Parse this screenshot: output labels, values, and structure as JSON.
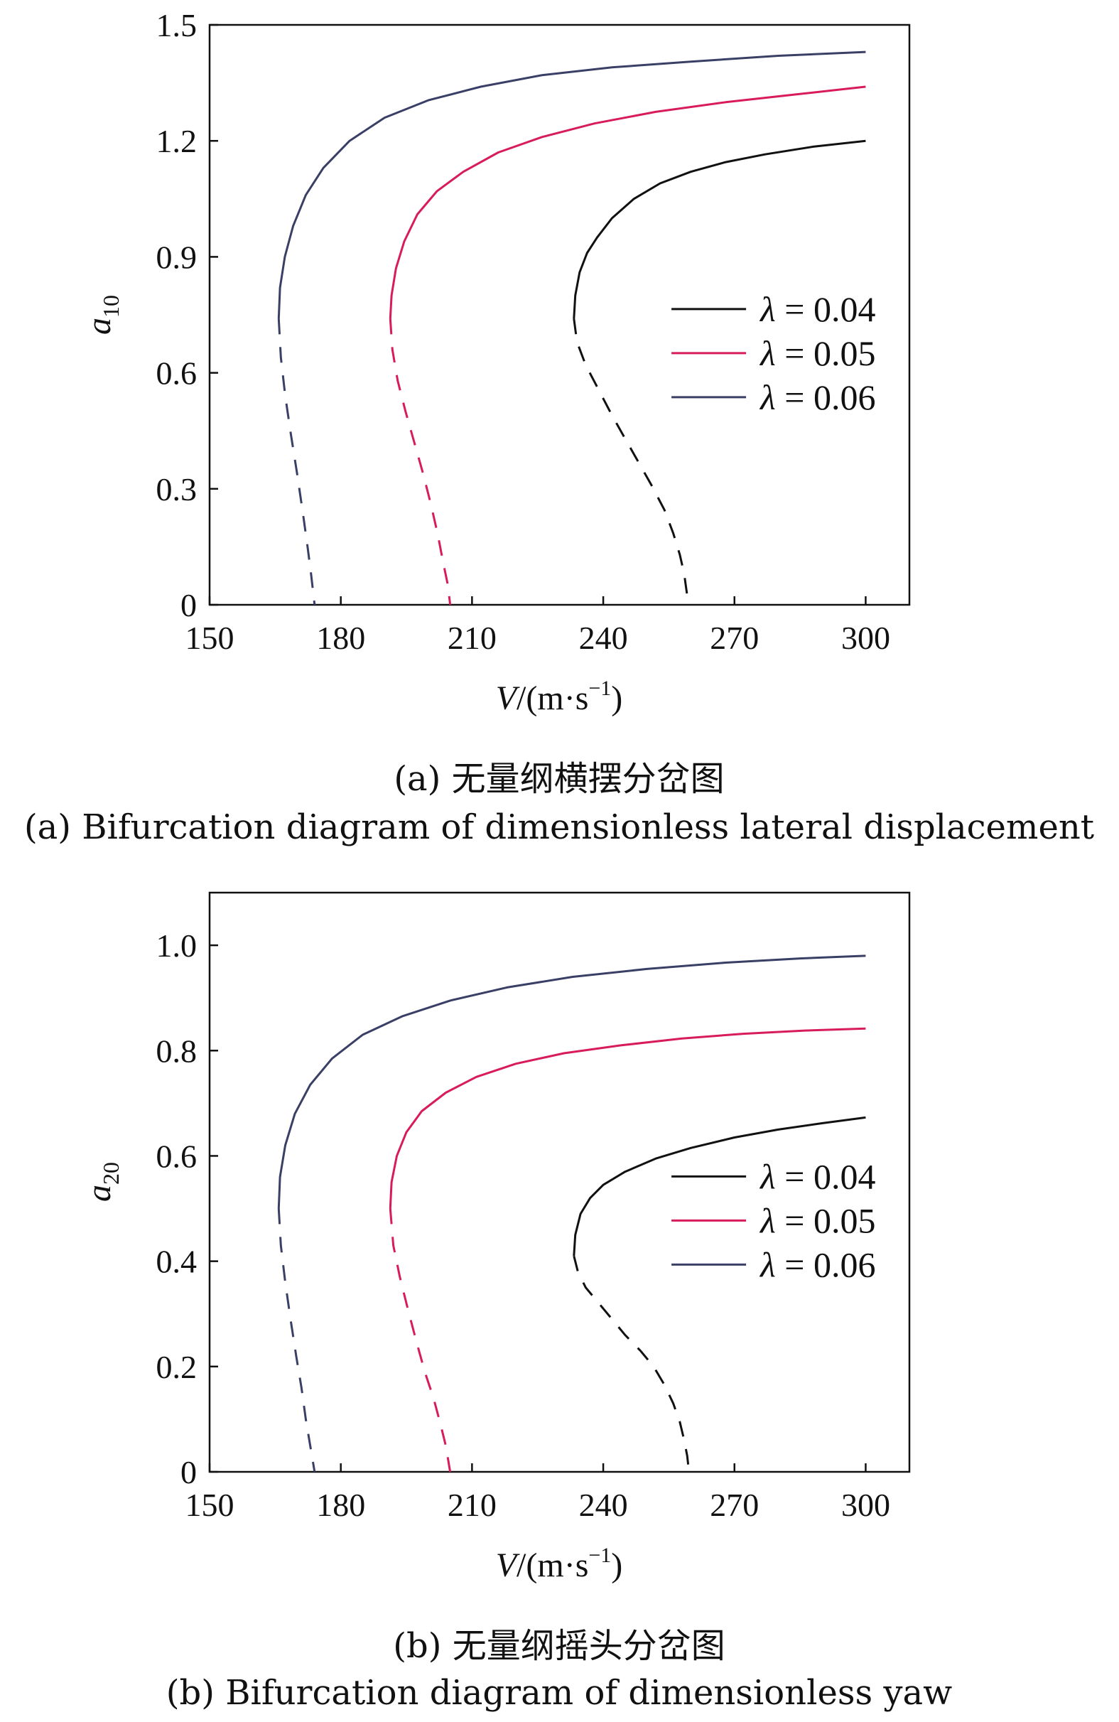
{
  "chart_data": [
    {
      "type": "line",
      "panel": "a",
      "caption_zh": "(a) 无量纲横摆分岔图",
      "caption_en": "(a) Bifurcation diagram of dimensionless lateral displacement",
      "xlabel": {
        "main": "V",
        "unit_open": "/(m·s",
        "unit_sup": "−1",
        "unit_close": ")"
      },
      "ylabel": {
        "base": "a",
        "sub": "10"
      },
      "xlim": [
        150,
        310
      ],
      "ylim": [
        0,
        1.5
      ],
      "xticks": [
        150,
        180,
        210,
        240,
        270,
        300
      ],
      "xtick_labels": [
        "150",
        "180",
        "210",
        "240",
        "270",
        "300"
      ],
      "yticks": [
        0,
        0.3,
        0.6,
        0.9,
        1.2,
        1.5
      ],
      "ytick_labels": [
        "0",
        "0.3",
        "0.6",
        "0.9",
        "1.2",
        "1.5"
      ],
      "grid": false,
      "legend": {
        "position": "center-right",
        "entries": [
          {
            "symbol": "λ",
            "label": " = 0.04",
            "color": "#111111"
          },
          {
            "symbol": "λ",
            "label": " = 0.05",
            "color": "#d81b5a"
          },
          {
            "symbol": "λ",
            "label": " = 0.06",
            "color": "#3a3f66"
          }
        ]
      },
      "series": [
        {
          "name": "λ = 0.04",
          "color": "#111111",
          "stable": [
            [
              233.3,
              0.74
            ],
            [
              233.6,
              0.8
            ],
            [
              234.6,
              0.86
            ],
            [
              236.3,
              0.91
            ],
            [
              238.6,
              0.95
            ],
            [
              242,
              1.0
            ],
            [
              247,
              1.05
            ],
            [
              253,
              1.09
            ],
            [
              260,
              1.12
            ],
            [
              268,
              1.145
            ],
            [
              277,
              1.165
            ],
            [
              288,
              1.185
            ],
            [
              300,
              1.2
            ]
          ],
          "unstable": [
            [
              233.3,
              0.74
            ],
            [
              234,
              0.68
            ],
            [
              236,
              0.62
            ],
            [
              239,
              0.555
            ],
            [
              242,
              0.49
            ],
            [
              245,
              0.43
            ],
            [
              248,
              0.37
            ],
            [
              251,
              0.31
            ],
            [
              254,
              0.245
            ],
            [
              256,
              0.185
            ],
            [
              257.5,
              0.13
            ],
            [
              258.5,
              0.08
            ],
            [
              259,
              0.04
            ],
            [
              259.5,
              0.0
            ]
          ]
        },
        {
          "name": "λ = 0.05",
          "color": "#d81b5a",
          "stable": [
            [
              191.3,
              0.74
            ],
            [
              191.6,
              0.8
            ],
            [
              192.6,
              0.87
            ],
            [
              194.5,
              0.94
            ],
            [
              197.5,
              1.01
            ],
            [
              202,
              1.07
            ],
            [
              208,
              1.12
            ],
            [
              216,
              1.17
            ],
            [
              226,
              1.21
            ],
            [
              238,
              1.245
            ],
            [
              252,
              1.275
            ],
            [
              268,
              1.3
            ],
            [
              284,
              1.32
            ],
            [
              300,
              1.34
            ]
          ],
          "unstable": [
            [
              191.3,
              0.74
            ],
            [
              191.8,
              0.66
            ],
            [
              193,
              0.58
            ],
            [
              194.8,
              0.5
            ],
            [
              196.8,
              0.42
            ],
            [
              198.8,
              0.34
            ],
            [
              200.6,
              0.26
            ],
            [
              202.2,
              0.18
            ],
            [
              203.4,
              0.11
            ],
            [
              204.5,
              0.05
            ],
            [
              205,
              0.0
            ]
          ]
        },
        {
          "name": "λ = 0.06",
          "color": "#3a3f66",
          "stable": [
            [
              165.8,
              0.74
            ],
            [
              166.1,
              0.82
            ],
            [
              167.2,
              0.9
            ],
            [
              169.1,
              0.98
            ],
            [
              172,
              1.06
            ],
            [
              176,
              1.13
            ],
            [
              182,
              1.2
            ],
            [
              190,
              1.26
            ],
            [
              200,
              1.305
            ],
            [
              212,
              1.34
            ],
            [
              226,
              1.37
            ],
            [
              242,
              1.39
            ],
            [
              260,
              1.405
            ],
            [
              280,
              1.42
            ],
            [
              300,
              1.43
            ]
          ],
          "unstable": [
            [
              165.8,
              0.74
            ],
            [
              166.3,
              0.64
            ],
            [
              167.3,
              0.54
            ],
            [
              168.6,
              0.44
            ],
            [
              170,
              0.34
            ],
            [
              171.3,
              0.24
            ],
            [
              172.4,
              0.15
            ],
            [
              173.2,
              0.08
            ],
            [
              174,
              0.0
            ]
          ]
        }
      ]
    },
    {
      "type": "line",
      "panel": "b",
      "caption_zh": "(b) 无量纲摇头分岔图",
      "caption_en": "(b) Bifurcation diagram of dimensionless yaw",
      "xlabel": {
        "main": "V",
        "unit_open": "/(m·s",
        "unit_sup": "−1",
        "unit_close": ")"
      },
      "ylabel": {
        "base": "a",
        "sub": "20"
      },
      "xlim": [
        150,
        310
      ],
      "ylim": [
        0,
        1.1
      ],
      "xticks": [
        150,
        180,
        210,
        240,
        270,
        300
      ],
      "xtick_labels": [
        "150",
        "180",
        "210",
        "240",
        "270",
        "300"
      ],
      "yticks": [
        0,
        0.2,
        0.4,
        0.6,
        0.8,
        1.0
      ],
      "ytick_labels": [
        "0",
        "0.2",
        "0.4",
        "0.6",
        "0.8",
        "1.0"
      ],
      "grid": false,
      "legend": {
        "position": "center-right",
        "entries": [
          {
            "symbol": "λ",
            "label": " = 0.04",
            "color": "#111111"
          },
          {
            "symbol": "λ",
            "label": " = 0.05",
            "color": "#d81b5a"
          },
          {
            "symbol": "λ",
            "label": " = 0.06",
            "color": "#3a3f66"
          }
        ]
      },
      "series": [
        {
          "name": "λ = 0.04",
          "color": "#111111",
          "stable": [
            [
              233.3,
              0.41
            ],
            [
              233.6,
              0.45
            ],
            [
              234.8,
              0.49
            ],
            [
              237,
              0.52
            ],
            [
              240,
              0.545
            ],
            [
              245,
              0.57
            ],
            [
              252,
              0.595
            ],
            [
              260,
              0.615
            ],
            [
              270,
              0.635
            ],
            [
              280,
              0.65
            ],
            [
              290,
              0.662
            ],
            [
              300,
              0.673
            ]
          ],
          "unstable": [
            [
              233.3,
              0.41
            ],
            [
              234.2,
              0.38
            ],
            [
              236,
              0.35
            ],
            [
              239,
              0.32
            ],
            [
              242,
              0.29
            ],
            [
              245,
              0.26
            ],
            [
              248.5,
              0.23
            ],
            [
              251.5,
              0.2
            ],
            [
              254,
              0.165
            ],
            [
              256,
              0.13
            ],
            [
              257.5,
              0.095
            ],
            [
              258.5,
              0.06
            ],
            [
              259.2,
              0.03
            ],
            [
              259.6,
              0.0
            ]
          ]
        },
        {
          "name": "λ = 0.05",
          "color": "#d81b5a",
          "stable": [
            [
              191.3,
              0.5
            ],
            [
              191.6,
              0.55
            ],
            [
              192.8,
              0.6
            ],
            [
              195,
              0.645
            ],
            [
              198.5,
              0.685
            ],
            [
              204,
              0.72
            ],
            [
              211,
              0.75
            ],
            [
              220,
              0.775
            ],
            [
              231,
              0.795
            ],
            [
              244,
              0.81
            ],
            [
              258,
              0.823
            ],
            [
              272,
              0.832
            ],
            [
              286,
              0.838
            ],
            [
              300,
              0.842
            ]
          ],
          "unstable": [
            [
              191.3,
              0.5
            ],
            [
              192,
              0.43
            ],
            [
              193.5,
              0.37
            ],
            [
              195.3,
              0.31
            ],
            [
              197.2,
              0.25
            ],
            [
              199.2,
              0.19
            ],
            [
              201.2,
              0.14
            ],
            [
              202.8,
              0.09
            ],
            [
              204,
              0.05
            ],
            [
              205,
              0.0
            ]
          ]
        },
        {
          "name": "λ = 0.06",
          "color": "#3a3f66",
          "stable": [
            [
              165.8,
              0.5
            ],
            [
              166.1,
              0.56
            ],
            [
              167.3,
              0.62
            ],
            [
              169.5,
              0.68
            ],
            [
              173,
              0.735
            ],
            [
              178,
              0.785
            ],
            [
              185,
              0.83
            ],
            [
              194,
              0.865
            ],
            [
              205,
              0.895
            ],
            [
              218,
              0.92
            ],
            [
              233,
              0.94
            ],
            [
              250,
              0.955
            ],
            [
              268,
              0.967
            ],
            [
              285,
              0.975
            ],
            [
              300,
              0.98
            ]
          ],
          "unstable": [
            [
              165.8,
              0.5
            ],
            [
              166.3,
              0.43
            ],
            [
              167.3,
              0.36
            ],
            [
              168.5,
              0.29
            ],
            [
              169.8,
              0.22
            ],
            [
              171,
              0.16
            ],
            [
              172,
              0.1
            ],
            [
              173,
              0.05
            ],
            [
              174,
              0.0
            ]
          ]
        }
      ]
    }
  ]
}
